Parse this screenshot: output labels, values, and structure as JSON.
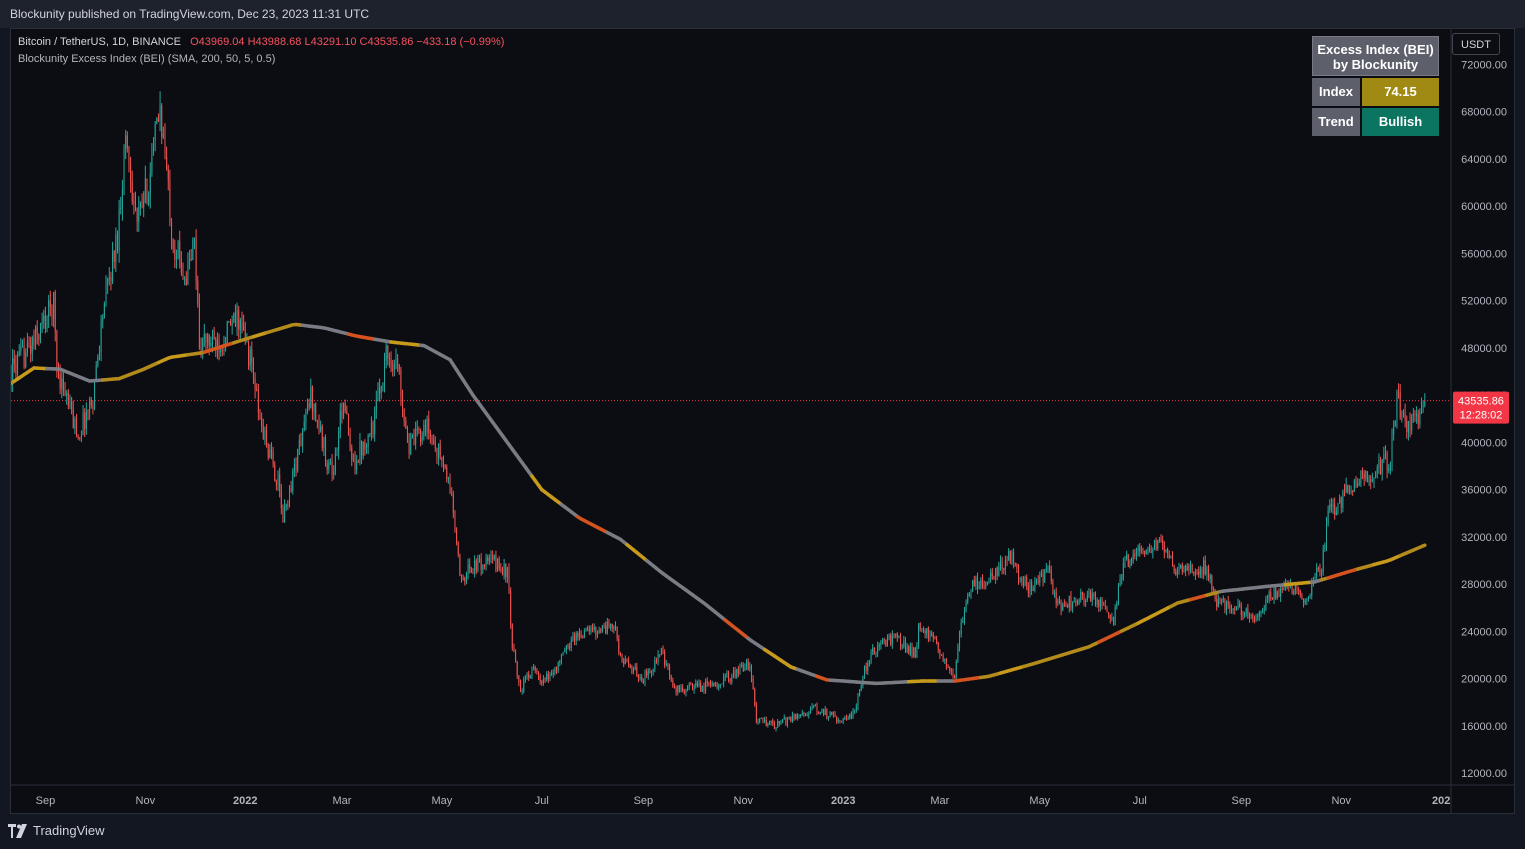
{
  "header": {
    "published_text": "Blockunity published on TradingView.com, Dec 23, 2023 11:31 UTC"
  },
  "legend": {
    "symbol": "Bitcoin / TetherUS, 1D, BINANCE",
    "ohlc": "O43969.04  H43988.68  L43291.10  C43535.86  −433.18 (−0.99%)",
    "indicator": "Blockunity Excess Index (BEI) (SMA, 200, 50, 5, 0.5)"
  },
  "bei_table": {
    "title_line1": "Excess Index (BEI)",
    "title_line2": "by Blockunity",
    "index_label": "Index",
    "index_value": "74.15",
    "index_color": "#a08a14",
    "trend_label": "Trend",
    "trend_value": "Bullish",
    "trend_color": "#0c7562"
  },
  "price_axis": {
    "currency_button": "USDT",
    "current_price": "43535.86",
    "countdown": "12:28:02",
    "current_color": "#f23645"
  },
  "footer": {
    "brand": "TradingView"
  },
  "chart_data": {
    "type": "candlestick",
    "symbol": "BTCUSDT",
    "interval": "1D",
    "ylim": [
      11000,
      75000
    ],
    "yticks": [
      12000,
      16000,
      20000,
      24000,
      28000,
      32000,
      36000,
      40000,
      44000,
      48000,
      52000,
      56000,
      60000,
      64000,
      68000,
      72000
    ],
    "ytick_labels": [
      "12000.00",
      "16000.00",
      "20000.00",
      "24000.00",
      "28000.00",
      "32000.00",
      "36000.00",
      "40000.00",
      "44000.00",
      "48000.00",
      "52000.00",
      "56000.00",
      "60000.00",
      "64000.00",
      "68000.00",
      "72000.00"
    ],
    "xtick_labels": [
      "Sep",
      "Nov",
      "2022",
      "Mar",
      "May",
      "Jul",
      "Sep",
      "Nov",
      "2023",
      "Mar",
      "May",
      "Jul",
      "Sep",
      "Nov",
      "202"
    ],
    "xtick_dates": [
      "2021-09-01",
      "2021-11-01",
      "2022-01-01",
      "2022-03-01",
      "2022-05-01",
      "2022-07-01",
      "2022-09-01",
      "2022-11-01",
      "2023-01-01",
      "2023-03-01",
      "2023-05-01",
      "2023-07-01",
      "2023-09-01",
      "2023-11-01",
      "2024-01-01"
    ],
    "xlim": [
      "2021-08-11",
      "2024-01-07"
    ],
    "last_close": 43535.86,
    "price_path": [
      [
        "2021-08-11",
        46000
      ],
      [
        "2021-08-25",
        48500
      ],
      [
        "2021-09-06",
        51800
      ],
      [
        "2021-09-08",
        46400
      ],
      [
        "2021-09-21",
        40600
      ],
      [
        "2021-09-30",
        43800
      ],
      [
        "2021-10-06",
        51000
      ],
      [
        "2021-10-15",
        57500
      ],
      [
        "2021-10-20",
        66000
      ],
      [
        "2021-10-27",
        58500
      ],
      [
        "2021-11-03",
        62000
      ],
      [
        "2021-11-10",
        68500
      ],
      [
        "2021-11-18",
        57000
      ],
      [
        "2021-11-26",
        54000
      ],
      [
        "2021-12-01",
        57000
      ],
      [
        "2021-12-04",
        48500
      ],
      [
        "2021-12-15",
        48500
      ],
      [
        "2021-12-28",
        50500
      ],
      [
        "2022-01-05",
        46500
      ],
      [
        "2022-01-10",
        41800
      ],
      [
        "2022-01-21",
        36500
      ],
      [
        "2022-01-24",
        33500
      ],
      [
        "2022-02-10",
        44000
      ],
      [
        "2022-02-20",
        38500
      ],
      [
        "2022-02-24",
        37500
      ],
      [
        "2022-03-02",
        44000
      ],
      [
        "2022-03-07",
        38000
      ],
      [
        "2022-03-20",
        41500
      ],
      [
        "2022-03-28",
        47500
      ],
      [
        "2022-04-04",
        46500
      ],
      [
        "2022-04-11",
        39500
      ],
      [
        "2022-04-21",
        41500
      ],
      [
        "2022-05-01",
        38500
      ],
      [
        "2022-05-07",
        35500
      ],
      [
        "2022-05-12",
        28500
      ],
      [
        "2022-05-20",
        29500
      ],
      [
        "2022-06-01",
        30000
      ],
      [
        "2022-06-10",
        29000
      ],
      [
        "2022-06-13",
        22500
      ],
      [
        "2022-06-18",
        19000
      ],
      [
        "2022-06-25",
        21000
      ],
      [
        "2022-07-01",
        19500
      ],
      [
        "2022-07-10",
        21000
      ],
      [
        "2022-07-20",
        23500
      ],
      [
        "2022-07-29",
        24000
      ],
      [
        "2022-08-14",
        24500
      ],
      [
        "2022-08-19",
        21500
      ],
      [
        "2022-09-01",
        20000
      ],
      [
        "2022-09-12",
        22200
      ],
      [
        "2022-09-20",
        19000
      ],
      [
        "2022-10-10",
        19400
      ],
      [
        "2022-10-25",
        20200
      ],
      [
        "2022-11-05",
        21300
      ],
      [
        "2022-11-09",
        16500
      ],
      [
        "2022-11-21",
        16000
      ],
      [
        "2022-12-05",
        17000
      ],
      [
        "2022-12-15",
        17400
      ],
      [
        "2022-12-31",
        16550
      ],
      [
        "2023-01-08",
        17100
      ],
      [
        "2023-01-14",
        20800
      ],
      [
        "2023-01-21",
        22700
      ],
      [
        "2023-02-01",
        23500
      ],
      [
        "2023-02-14",
        22000
      ],
      [
        "2023-02-16",
        24500
      ],
      [
        "2023-02-25",
        23200
      ],
      [
        "2023-03-10",
        20200
      ],
      [
        "2023-03-14",
        24500
      ],
      [
        "2023-03-20",
        28000
      ],
      [
        "2023-03-31",
        28400
      ],
      [
        "2023-04-13",
        30400
      ],
      [
        "2023-04-24",
        27500
      ],
      [
        "2023-05-06",
        29000
      ],
      [
        "2023-05-12",
        26200
      ],
      [
        "2023-05-31",
        27100
      ],
      [
        "2023-06-15",
        25000
      ],
      [
        "2023-06-21",
        29900
      ],
      [
        "2023-06-30",
        30500
      ],
      [
        "2023-07-13",
        31300
      ],
      [
        "2023-07-24",
        29200
      ],
      [
        "2023-08-10",
        29400
      ],
      [
        "2023-08-17",
        26600
      ],
      [
        "2023-09-01",
        25900
      ],
      [
        "2023-09-11",
        25200
      ],
      [
        "2023-09-19",
        27000
      ],
      [
        "2023-10-01",
        27900
      ],
      [
        "2023-10-11",
        26800
      ],
      [
        "2023-10-20",
        29700
      ],
      [
        "2023-10-24",
        34000
      ],
      [
        "2023-11-09",
        36500
      ],
      [
        "2023-11-24",
        37800
      ],
      [
        "2023-12-01",
        38700
      ],
      [
        "2023-12-05",
        44000
      ],
      [
        "2023-12-11",
        41200
      ],
      [
        "2023-12-18",
        42500
      ],
      [
        "2023-12-22",
        43535.86
      ]
    ],
    "series": [
      {
        "name": "Blockunity Excess Index (BEI)",
        "values": [
          [
            "2021-08-11",
            45000
          ],
          [
            "2021-08-25",
            46300
          ],
          [
            "2021-09-10",
            46200
          ],
          [
            "2021-09-28",
            45200
          ],
          [
            "2021-10-16",
            45400
          ],
          [
            "2021-10-31",
            46200
          ],
          [
            "2021-11-16",
            47200
          ],
          [
            "2021-12-06",
            47600
          ],
          [
            "2021-12-31",
            48700
          ],
          [
            "2022-01-31",
            50000
          ],
          [
            "2022-02-18",
            49700
          ],
          [
            "2022-03-10",
            49000
          ],
          [
            "2022-03-31",
            48500
          ],
          [
            "2022-04-20",
            48200
          ],
          [
            "2022-05-06",
            47000
          ],
          [
            "2022-05-20",
            44000
          ],
          [
            "2022-06-10",
            40000
          ],
          [
            "2022-07-01",
            36000
          ],
          [
            "2022-07-24",
            33600
          ],
          [
            "2022-08-18",
            31800
          ],
          [
            "2022-09-12",
            29000
          ],
          [
            "2022-10-08",
            26400
          ],
          [
            "2022-11-05",
            23300
          ],
          [
            "2022-11-30",
            21000
          ],
          [
            "2022-12-22",
            19900
          ],
          [
            "2023-01-21",
            19600
          ],
          [
            "2023-02-18",
            19800
          ],
          [
            "2023-03-10",
            19800
          ],
          [
            "2023-03-31",
            20200
          ],
          [
            "2023-04-28",
            21300
          ],
          [
            "2023-05-31",
            22700
          ],
          [
            "2023-06-30",
            24700
          ],
          [
            "2023-07-24",
            26400
          ],
          [
            "2023-08-20",
            27400
          ],
          [
            "2023-09-16",
            27800
          ],
          [
            "2023-10-16",
            28200
          ],
          [
            "2023-11-09",
            29200
          ],
          [
            "2023-11-30",
            30000
          ],
          [
            "2023-12-22",
            31300
          ]
        ]
      }
    ]
  }
}
